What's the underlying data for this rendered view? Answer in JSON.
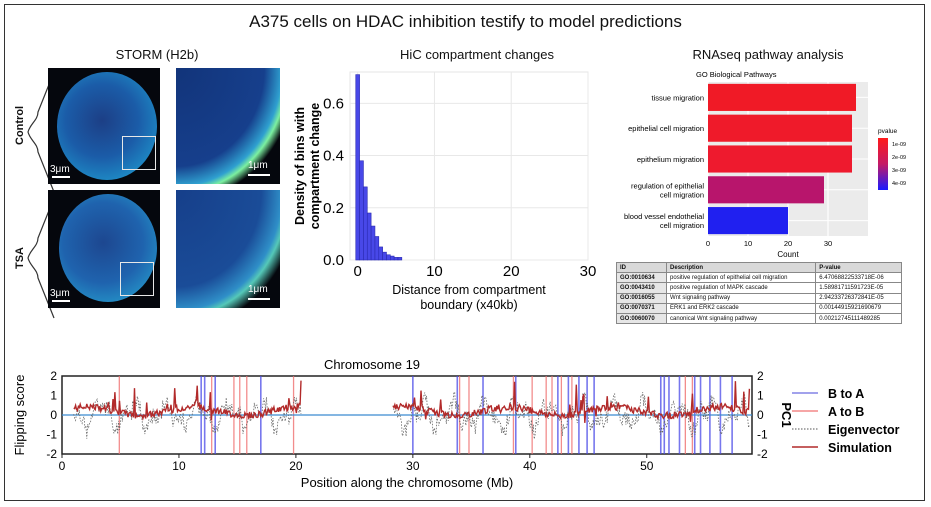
{
  "title": "A375 cells on HDAC inhibition testify to model predictions",
  "storm": {
    "title": "STORM (H2b)",
    "rows": [
      {
        "label": "Control"
      },
      {
        "label": "TSA"
      }
    ],
    "scale_large": "3μm",
    "scale_zoom": "1μm"
  },
  "hic": {
    "title": "HiC compartment changes",
    "chart_data": {
      "type": "bar",
      "title": "HiC compartment changes",
      "xlabel": "Distance from compartment boundary (x40kb)",
      "ylabel": "Density of bins with compartment change",
      "xlim": [
        -1,
        30
      ],
      "ylim": [
        0,
        0.72
      ],
      "xticks": [
        "0",
        "10",
        "20",
        "30"
      ],
      "yticks": [
        "0.0",
        "0.2",
        "0.4",
        "0.6"
      ],
      "bins": [
        0,
        0.5,
        1,
        1.5,
        2,
        2.5,
        3,
        3.5,
        4,
        4.5,
        5,
        5.5
      ],
      "values": [
        0.71,
        0.38,
        0.28,
        0.18,
        0.13,
        0.09,
        0.05,
        0.03,
        0.02,
        0.015,
        0.01,
        0.01
      ],
      "xlabel_lines": [
        "Distance from compartment",
        "boundary (x40kb)"
      ],
      "ylabel_lines": [
        "Density of bins with",
        "compartment change"
      ]
    }
  },
  "rnaseq": {
    "title": "RNAseq pathway analysis",
    "chart_data": {
      "type": "bar",
      "title": "GO Biological Pathways",
      "orientation": "horizontal",
      "categories": [
        "tissue migration",
        "epithelial cell migration",
        "epithelium migration",
        "regulation of epithelial cell migration",
        "blood vessel endothelial cell migration"
      ],
      "category_lines": [
        [
          "tissue migration"
        ],
        [
          "epithelial cell migration"
        ],
        [
          "epithelium migration"
        ],
        [
          "regulation of epithelial",
          "cell migration"
        ],
        [
          "blood vessel endothelial",
          "cell migration"
        ]
      ],
      "values": [
        37,
        36,
        36,
        29,
        20
      ],
      "colors": [
        "#f01a26",
        "#ef1a2a",
        "#ee1a2e",
        "#b8156c",
        "#2020f0"
      ],
      "xlabel": "Count",
      "xlim": [
        0,
        40
      ],
      "xticks": [
        "0",
        "10",
        "20",
        "30"
      ],
      "legend": {
        "title": "pvalue",
        "labels": [
          "1e-09",
          "2e-09",
          "3e-09",
          "4e-09"
        ],
        "position": "right"
      }
    },
    "table": {
      "headers": [
        "ID",
        "Description",
        "P-value"
      ],
      "rows": [
        {
          "id": "GO:0010634",
          "desc": "positive regulation of epithelial cell migration",
          "p": "6.47068822533718E-06"
        },
        {
          "id": "GO:0043410",
          "desc": "positive regulation of MAPK cascade",
          "p": "1.58981711591723E-05"
        },
        {
          "id": "GO:0016055",
          "desc": "Wnt signaling pathway",
          "p": "2.94233726372841E-05"
        },
        {
          "id": "GO:0070371",
          "desc": "ERK1 and ERK2 cascade",
          "p": "0.00144915921690679"
        },
        {
          "id": "GO:0060070",
          "desc": "canonical Wnt signaling pathway",
          "p": "0.00212745111489285"
        }
      ]
    }
  },
  "chrom": {
    "chart_data": {
      "type": "line",
      "title": "Chromosome 19",
      "xlabel": "Position along the chromosome (Mb)",
      "ylabel_left": "Flipping score",
      "ylabel_right": "PC1",
      "xlim": [
        0,
        59
      ],
      "ylim_left": [
        -2,
        2
      ],
      "ylim_right": [
        -2,
        2
      ],
      "xticks": [
        "0",
        "10",
        "20",
        "30",
        "40",
        "50"
      ],
      "yticks_left": [
        "-2",
        "-1",
        "0",
        "1",
        "2"
      ],
      "yticks_right": [
        "-2",
        "-1",
        "0",
        "1",
        "2"
      ],
      "b_to_a": [
        11.9,
        12.2,
        13.1,
        17.0,
        30.0,
        33.8,
        36.0,
        38.8,
        42.4,
        43.3,
        44.2,
        44.9,
        45.5,
        51.2,
        51.5,
        51.9,
        52.8,
        54.1,
        54.6,
        55.4,
        56.3,
        57.3
      ],
      "a_to_b": [
        4.9,
        12.8,
        14.7,
        15.2,
        15.8,
        19.8,
        34.0,
        34.8,
        38.6,
        40.2,
        41.4,
        41.9,
        42.7,
        43.6,
        53.3,
        53.9
      ],
      "legend": [
        "B to A",
        "A to B",
        "Eigenvector",
        "Simulation"
      ]
    }
  }
}
